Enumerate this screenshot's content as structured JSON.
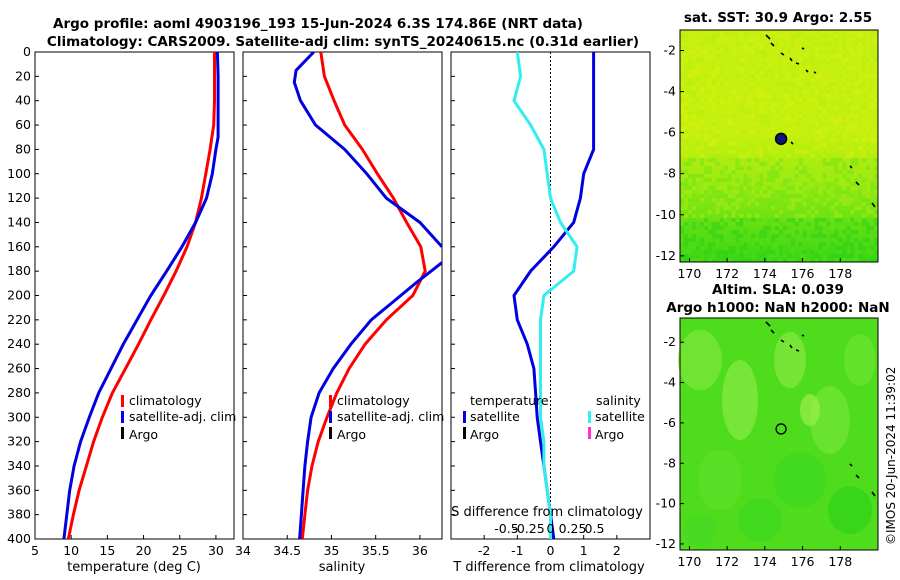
{
  "title": {
    "line1": "Argo profile: aoml 4903196_193 15-Jun-2024 6.3S 174.86E (NRT data)",
    "line2": "Climatology: CARS2009. Satellite-adj clim: synTS_20240615.nc (0.31d earlier)"
  },
  "credit": "©IMOS 20-Jun-2024 11:39:02",
  "colors": {
    "climatology": "#ff0000",
    "satellite": "#0000e0",
    "argo": "#000000",
    "sal_satellite": "#33eeee",
    "sal_argo": "#ff33cc"
  },
  "chart_data": [
    {
      "type": "line",
      "panel": "temperature",
      "xlabel": "temperature (deg C)",
      "ylabel": "",
      "xlim": [
        5,
        32.5
      ],
      "xticks": [
        5,
        10,
        15,
        20,
        25,
        30
      ],
      "ylim": [
        0,
        400
      ],
      "yticks": [
        0,
        20,
        40,
        60,
        80,
        100,
        120,
        140,
        160,
        180,
        200,
        220,
        240,
        260,
        280,
        300,
        320,
        340,
        360,
        380,
        400
      ],
      "y_reversed": true,
      "legend": [
        "climatology",
        "satellite-adj. clim",
        "Argo"
      ],
      "series": [
        {
          "name": "climatology",
          "color_key": "climatology",
          "points": [
            [
              29.8,
              0
            ],
            [
              29.8,
              20
            ],
            [
              29.8,
              40
            ],
            [
              29.7,
              60
            ],
            [
              29.2,
              80
            ],
            [
              28.6,
              100
            ],
            [
              28.0,
              120
            ],
            [
              27.2,
              140
            ],
            [
              26.0,
              160
            ],
            [
              24.5,
              180
            ],
            [
              22.8,
              200
            ],
            [
              21.0,
              220
            ],
            [
              19.3,
              240
            ],
            [
              17.5,
              260
            ],
            [
              15.7,
              280
            ],
            [
              14.3,
              300
            ],
            [
              13.1,
              320
            ],
            [
              12.1,
              340
            ],
            [
              11.1,
              360
            ],
            [
              10.3,
              380
            ],
            [
              9.6,
              400
            ]
          ]
        },
        {
          "name": "satellite-adj. clim",
          "color_key": "satellite",
          "points": [
            [
              30.2,
              0
            ],
            [
              30.3,
              20
            ],
            [
              30.3,
              40
            ],
            [
              30.3,
              60
            ],
            [
              30.3,
              70
            ],
            [
              30.0,
              80
            ],
            [
              29.5,
              100
            ],
            [
              28.7,
              120
            ],
            [
              27.2,
              140
            ],
            [
              25.3,
              160
            ],
            [
              23.2,
              180
            ],
            [
              21.0,
              200
            ],
            [
              19.1,
              220
            ],
            [
              17.2,
              240
            ],
            [
              15.5,
              260
            ],
            [
              13.8,
              280
            ],
            [
              12.5,
              300
            ],
            [
              11.3,
              320
            ],
            [
              10.4,
              340
            ],
            [
              9.8,
              360
            ],
            [
              9.4,
              380
            ],
            [
              9.0,
              400
            ]
          ]
        }
      ]
    },
    {
      "type": "line",
      "panel": "salinity",
      "xlabel": "salinity",
      "ylabel": "",
      "xlim": [
        34,
        36.25
      ],
      "xticks": [
        34,
        34.5,
        35,
        35.5,
        36
      ],
      "ylim": [
        0,
        400
      ],
      "y_reversed": true,
      "legend": [
        "climatology",
        "satellite-adj. clim",
        "Argo"
      ],
      "series": [
        {
          "name": "climatology",
          "color_key": "climatology",
          "points": [
            [
              34.88,
              0
            ],
            [
              34.92,
              20
            ],
            [
              35.03,
              40
            ],
            [
              35.15,
              60
            ],
            [
              35.35,
              80
            ],
            [
              35.52,
              100
            ],
            [
              35.7,
              120
            ],
            [
              35.85,
              140
            ],
            [
              36.01,
              160
            ],
            [
              36.06,
              180
            ],
            [
              35.92,
              200
            ],
            [
              35.62,
              220
            ],
            [
              35.38,
              240
            ],
            [
              35.2,
              260
            ],
            [
              35.06,
              280
            ],
            [
              34.95,
              300
            ],
            [
              34.85,
              320
            ],
            [
              34.78,
              340
            ],
            [
              34.73,
              360
            ],
            [
              34.7,
              380
            ],
            [
              34.67,
              400
            ]
          ]
        },
        {
          "name": "satellite-adj. clim",
          "color_key": "satellite",
          "points": [
            [
              34.8,
              0
            ],
            [
              34.6,
              15
            ],
            [
              34.58,
              25
            ],
            [
              34.65,
              40
            ],
            [
              34.82,
              60
            ],
            [
              35.15,
              80
            ],
            [
              35.4,
              100
            ],
            [
              35.62,
              120
            ],
            [
              36.0,
              140
            ],
            [
              36.25,
              160
            ]
          ],
          "extra": [
            [
              36.25,
              173
            ],
            [
              35.95,
              190
            ],
            [
              35.7,
              205
            ],
            [
              35.45,
              220
            ],
            [
              35.22,
              240
            ],
            [
              35.02,
              260
            ],
            [
              34.86,
              280
            ],
            [
              34.77,
              300
            ],
            [
              34.73,
              320
            ],
            [
              34.7,
              340
            ],
            [
              34.68,
              360
            ],
            [
              34.66,
              380
            ],
            [
              34.64,
              400
            ]
          ]
        }
      ]
    },
    {
      "type": "line",
      "panel": "difference",
      "xlabel": "T difference from climatology",
      "top_label": "S difference from climatology",
      "xlim": [
        -3,
        3
      ],
      "xticks": [
        -2,
        -1,
        0,
        1,
        2
      ],
      "top_ticks": [
        -0.5,
        -0.25,
        0,
        0.25,
        0.5
      ],
      "top_tick_labels": [
        "-0.5",
        "-0.25",
        "0",
        "0.25",
        "0.5"
      ],
      "ylim": [
        0,
        400
      ],
      "y_reversed": true,
      "legend_groups": [
        {
          "title": "temperature",
          "items": [
            "satellite",
            "Argo"
          ]
        },
        {
          "title": "salinity",
          "items": [
            "satellite",
            "Argo"
          ]
        }
      ],
      "series": [
        {
          "name": "T satellite",
          "color_key": "satellite",
          "points": [
            [
              1.3,
              0
            ],
            [
              1.3,
              20
            ],
            [
              1.3,
              40
            ],
            [
              1.3,
              60
            ],
            [
              1.3,
              80
            ],
            [
              1.0,
              100
            ],
            [
              0.9,
              120
            ],
            [
              0.7,
              140
            ],
            [
              0.1,
              160
            ],
            [
              -0.6,
              180
            ],
            [
              -1.1,
              200
            ],
            [
              -1.0,
              220
            ],
            [
              -0.7,
              240
            ],
            [
              -0.5,
              260
            ],
            [
              -0.45,
              280
            ],
            [
              -0.4,
              300
            ],
            [
              -0.3,
              320
            ],
            [
              -0.2,
              340
            ],
            [
              -0.1,
              360
            ],
            [
              0,
              380
            ],
            [
              0.1,
              400
            ]
          ]
        },
        {
          "name": "S satellite",
          "color_key": "sal_satellite",
          "points": [
            [
              -1.0,
              0
            ],
            [
              -0.9,
              20
            ],
            [
              -1.1,
              40
            ],
            [
              -0.6,
              60
            ],
            [
              -0.2,
              80
            ],
            [
              -0.1,
              100
            ],
            [
              0.0,
              120
            ],
            [
              0.3,
              140
            ],
            [
              0.8,
              160
            ],
            [
              0.7,
              180
            ],
            [
              -0.2,
              200
            ],
            [
              -0.3,
              220
            ],
            [
              -0.3,
              240
            ],
            [
              -0.3,
              260
            ],
            [
              -0.3,
              280
            ],
            [
              -0.3,
              300
            ],
            [
              -0.2,
              320
            ],
            [
              -0.2,
              340
            ],
            [
              -0.1,
              360
            ],
            [
              0.0,
              380
            ],
            [
              0.0,
              400
            ]
          ]
        }
      ]
    },
    {
      "type": "heatmap",
      "panel": "sst_map",
      "title": "sat. SST: 30.9 Argo: 2.55",
      "xlim": [
        169.5,
        180
      ],
      "xticks": [
        170,
        172,
        174,
        176,
        178
      ],
      "ylim": [
        -12.3,
        -1
      ],
      "yticks": [
        -2,
        -4,
        -6,
        -8,
        -10,
        -12
      ],
      "marker": {
        "lon": 174.86,
        "lat": -6.3
      }
    },
    {
      "type": "heatmap",
      "panel": "sla_map",
      "title_line1": "Altim. SLA: 0.039",
      "title_line2": "Argo h1000: NaN h2000: NaN",
      "xlim": [
        169.5,
        180
      ],
      "xticks": [
        170,
        172,
        174,
        176,
        178
      ],
      "ylim": [
        -12.3,
        -0.8
      ],
      "yticks": [
        -2,
        -4,
        -6,
        -8,
        -10,
        -12
      ],
      "marker": {
        "lon": 174.86,
        "lat": -6.3
      }
    }
  ]
}
